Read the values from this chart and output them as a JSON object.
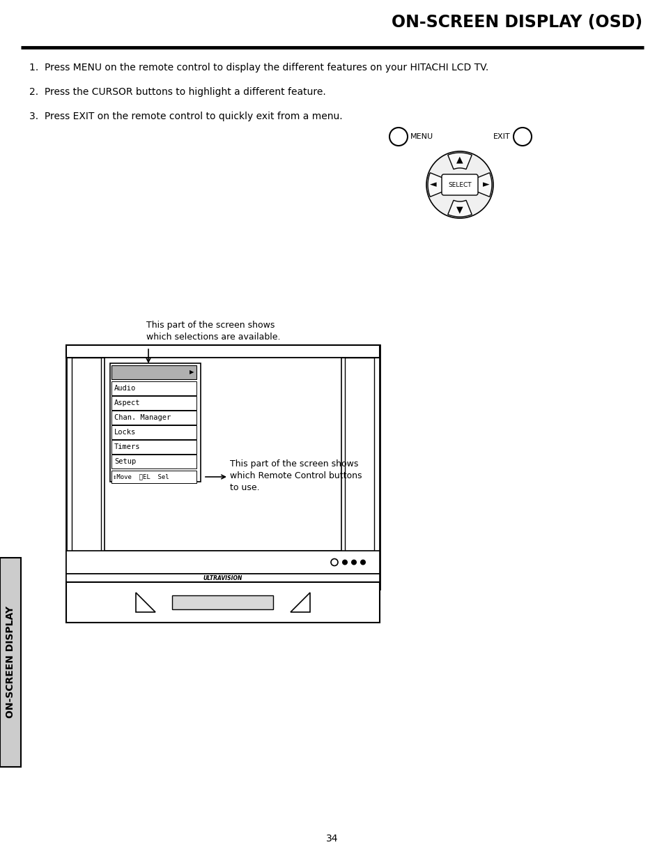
{
  "title": "ON-SCREEN DISPLAY (OSD)",
  "line1": "1.  Press MENU on the remote control to display the different features on your HITACHI LCD TV.",
  "line2": "2.  Press the CURSOR buttons to highlight a different feature.",
  "line3": "3.  Press EXIT on the remote control to quickly exit from a menu.",
  "annotation1_line1": "This part of the screen shows",
  "annotation1_line2": "which selections are available.",
  "annotation2_line1": "This part of the screen shows",
  "annotation2_line2": "which Remote Control buttons",
  "annotation2_line3": "to use.",
  "menu_items": [
    "Audio",
    "Aspect",
    "Chan. Manager",
    "Locks",
    "Timers",
    "Setup"
  ],
  "status_bar": "↕Move  ⓈEL  Sel",
  "side_label": "ON-SCREEN DISPLAY",
  "page_number": "34",
  "ultravision_text": "ULTRAVISION",
  "bg_color": "#ffffff",
  "text_color": "#000000",
  "title_color": "#000000",
  "menu_highlight_color": "#b0b0b0",
  "side_label_bg": "#d0d0d0"
}
